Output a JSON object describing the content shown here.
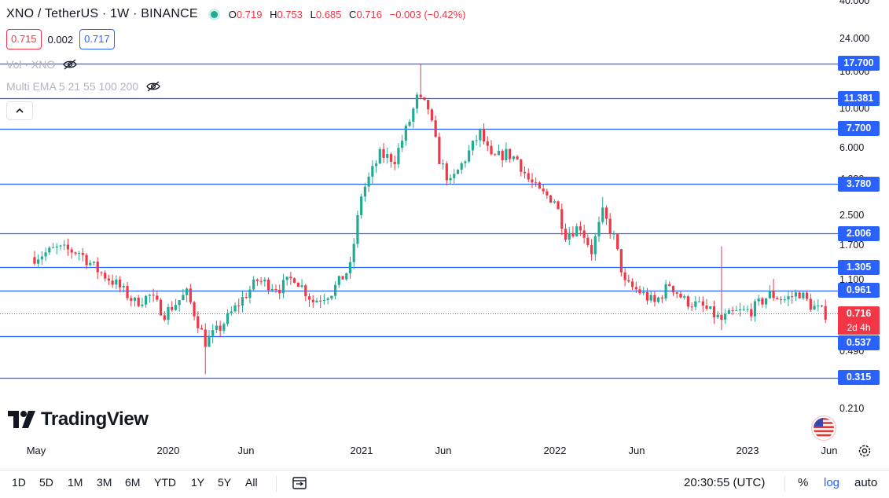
{
  "legend": {
    "symbol": "XNO / TetherUS · 1W · BINANCE",
    "ohlc": [
      {
        "label": "O",
        "value": "0.719"
      },
      {
        "label": "H",
        "value": "0.753"
      },
      {
        "label": "L",
        "value": "0.685"
      },
      {
        "label": "C",
        "value": "0.716"
      }
    ],
    "change": "−0.003 (−0.42%)",
    "sell_price": "0.715",
    "spread": "0.002",
    "buy_price": "0.717",
    "indicators": [
      {
        "name": "Vol · XNO"
      },
      {
        "name": "Multi EMA 5 21 55 100 200"
      }
    ]
  },
  "price_axis": {
    "ticks": [
      "40.000",
      "24.000",
      "16.000",
      "10.000",
      "6.000",
      "4.000",
      "2.500",
      "1.700",
      "1.100",
      "0.490",
      "0.210"
    ],
    "horizontal_lines": [
      "17.700",
      "11.381",
      "7.700",
      "3.780",
      "2.006",
      "1.305",
      "0.961",
      "0.537",
      "0.315"
    ],
    "last_price": "0.716",
    "countdown": "2d 4h"
  },
  "time_axis": [
    "May",
    "2020",
    "Jun",
    "2021",
    "Jun",
    "2022",
    "Jun",
    "2023",
    "Jun"
  ],
  "logo": "TradingView",
  "toolbar": {
    "ranges": [
      "1D",
      "5D",
      "1M",
      "3M",
      "6M",
      "YTD",
      "1Y",
      "5Y",
      "All"
    ],
    "time": "20:30:55 (UTC)",
    "percent": "%",
    "log": "log",
    "auto": "auto"
  },
  "colors": {
    "up": "#22ab94",
    "down": "#f23645",
    "line": "#2962ff"
  },
  "chart_data": {
    "type": "candlestick",
    "scale": "log",
    "ylim": [
      0.18,
      44
    ],
    "x": [
      "2019-04-29",
      "2023-06-12"
    ],
    "horizontal_levels": [
      17.7,
      11.381,
      7.7,
      3.78,
      2.006,
      1.305,
      0.961,
      0.537,
      0.315
    ],
    "last": 0.716,
    "trend_points": [
      [
        "2019-04-29",
        1.48
      ],
      [
        "2019-06-10",
        1.65
      ],
      [
        "2019-07-22",
        1.58
      ],
      [
        "2019-08-26",
        1.25
      ],
      [
        "2019-09-30",
        1.05
      ],
      [
        "2019-11-04",
        0.83
      ],
      [
        "2019-12-02",
        0.9
      ],
      [
        "2019-12-30",
        0.72
      ],
      [
        "2020-02-10",
        0.93
      ],
      [
        "2020-03-16",
        0.5
      ],
      [
        "2020-04-13",
        0.6
      ],
      [
        "2020-05-18",
        0.82
      ],
      [
        "2020-06-22",
        1.1
      ],
      [
        "2020-08-03",
        1.0
      ],
      [
        "2020-08-31",
        1.15
      ],
      [
        "2020-10-05",
        0.84
      ],
      [
        "2020-11-09",
        0.95
      ],
      [
        "2020-12-14",
        1.3
      ],
      [
        "2021-01-04",
        3.3
      ],
      [
        "2021-02-08",
        5.5
      ],
      [
        "2021-03-08",
        5.2
      ],
      [
        "2021-04-05",
        8.5
      ],
      [
        "2021-04-19",
        11.3
      ],
      [
        "2021-05-10",
        10.0
      ],
      [
        "2021-05-31",
        5.2
      ],
      [
        "2021-06-21",
        3.8
      ],
      [
        "2021-07-26",
        5.7
      ],
      [
        "2021-08-16",
        7.3
      ],
      [
        "2021-09-06",
        5.2
      ],
      [
        "2021-10-04",
        5.6
      ],
      [
        "2021-10-25",
        5.2
      ],
      [
        "2021-11-15",
        4.0
      ],
      [
        "2021-12-06",
        3.4
      ],
      [
        "2022-01-03",
        3.1
      ],
      [
        "2022-01-24",
        2.0
      ],
      [
        "2022-02-21",
        2.2
      ],
      [
        "2022-03-14",
        1.6
      ],
      [
        "2022-04-04",
        2.6
      ],
      [
        "2022-04-25",
        1.9
      ],
      [
        "2022-05-16",
        1.05
      ],
      [
        "2022-06-13",
        0.95
      ],
      [
        "2022-07-11",
        0.82
      ],
      [
        "2022-08-08",
        1.05
      ],
      [
        "2022-09-05",
        0.85
      ],
      [
        "2022-10-10",
        0.78
      ],
      [
        "2022-11-14",
        0.66
      ],
      [
        "2022-12-05",
        0.72
      ],
      [
        "2023-01-09",
        0.75
      ],
      [
        "2023-02-13",
        0.92
      ],
      [
        "2023-03-13",
        0.86
      ],
      [
        "2023-04-10",
        0.94
      ],
      [
        "2023-05-01",
        0.8
      ],
      [
        "2023-05-29",
        0.716
      ]
    ]
  }
}
